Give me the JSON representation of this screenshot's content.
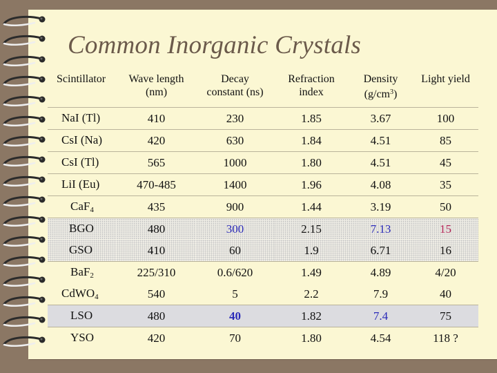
{
  "title": "Common Inorganic Crystals",
  "header": {
    "scintillator": "Scintillator",
    "wave_line1": "Wave length",
    "wave_line2": "(nm)",
    "decay_line1": "Decay",
    "decay_line2": "constant (ns)",
    "refr_line1": "Refraction",
    "refr_line2": "index",
    "dens_line1": "Density",
    "dens_line2_a": "(g/cm",
    "dens_line2_sup": "3",
    "dens_line2_b": ")",
    "light": "Light yield"
  },
  "rows": [
    {
      "name": "NaI (Tl)",
      "sub": "",
      "wave": "410",
      "decay": "230",
      "refr": "1.85",
      "dens": "3.67",
      "light": "100"
    },
    {
      "name": "CsI (Na)",
      "sub": "",
      "wave": "420",
      "decay": "630",
      "refr": "1.84",
      "dens": "4.51",
      "light": "85"
    },
    {
      "name": "CsI (Tl)",
      "sub": "",
      "wave": "565",
      "decay": "1000",
      "refr": "1.80",
      "dens": "4.51",
      "light": "45"
    },
    {
      "name": "LiI (Eu)",
      "sub": "",
      "wave": "470-485",
      "decay": "1400",
      "refr": "1.96",
      "dens": "4.08",
      "light": "35"
    },
    {
      "name": "CaF",
      "sub": "4",
      "wave": "435",
      "decay": "900",
      "refr": "1.44",
      "dens": "3.19",
      "light": "50"
    },
    {
      "name": "BGO",
      "sub": "",
      "wave": "480",
      "decay": "300",
      "refr": "2.15",
      "dens": "7.13",
      "light": "15"
    },
    {
      "name": "GSO",
      "sub": "",
      "wave": "410",
      "decay": "60",
      "refr": "1.9",
      "dens": "6.71",
      "light": "16"
    },
    {
      "name": "BaF",
      "sub": "2",
      "wave": "225/310",
      "decay": "0.6/620",
      "refr": "1.49",
      "dens": "4.89",
      "light": "4/20"
    },
    {
      "name": "CdWO",
      "sub": "4",
      "wave": "540",
      "decay": "5",
      "refr": "2.2",
      "dens": "7.9",
      "light": "40"
    },
    {
      "name": "LSO",
      "sub": "",
      "wave": "480",
      "decay": "40",
      "refr": "1.82",
      "dens": "7.4",
      "light": "75"
    },
    {
      "name": "YSO",
      "sub": "",
      "wave": "420",
      "decay": "70",
      "refr": "1.80",
      "dens": "4.54",
      "light": "118 ?"
    }
  ],
  "colors": {
    "background": "#8b7764",
    "paper": "#fbf7d3",
    "title": "#6b5a4b",
    "highlight_blue": "#2a2ab8",
    "highlight_red": "#b02054"
  }
}
